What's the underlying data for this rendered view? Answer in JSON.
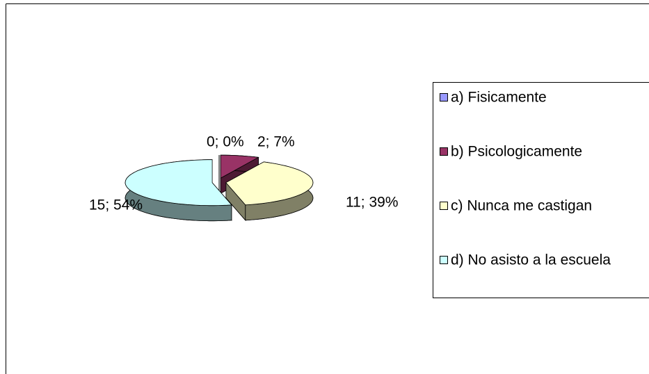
{
  "chart_data": {
    "type": "pie3d",
    "categories": [
      "a) Fisicamente",
      "b) Psicologicamente",
      "c) Nunca me castigan",
      "d) No asisto a la escuela"
    ],
    "values": [
      0,
      2,
      11,
      15
    ],
    "value_labels": [
      "0; 0%",
      "2; 7%",
      "11; 39%",
      "15; 54%"
    ],
    "colors": [
      "#9999ff",
      "#993366",
      "#ffffcc",
      "#ccffff"
    ],
    "side_colors": [
      "#4d4d80",
      "#4d1a33",
      "#808066",
      "#668080"
    ],
    "legend": "right"
  }
}
